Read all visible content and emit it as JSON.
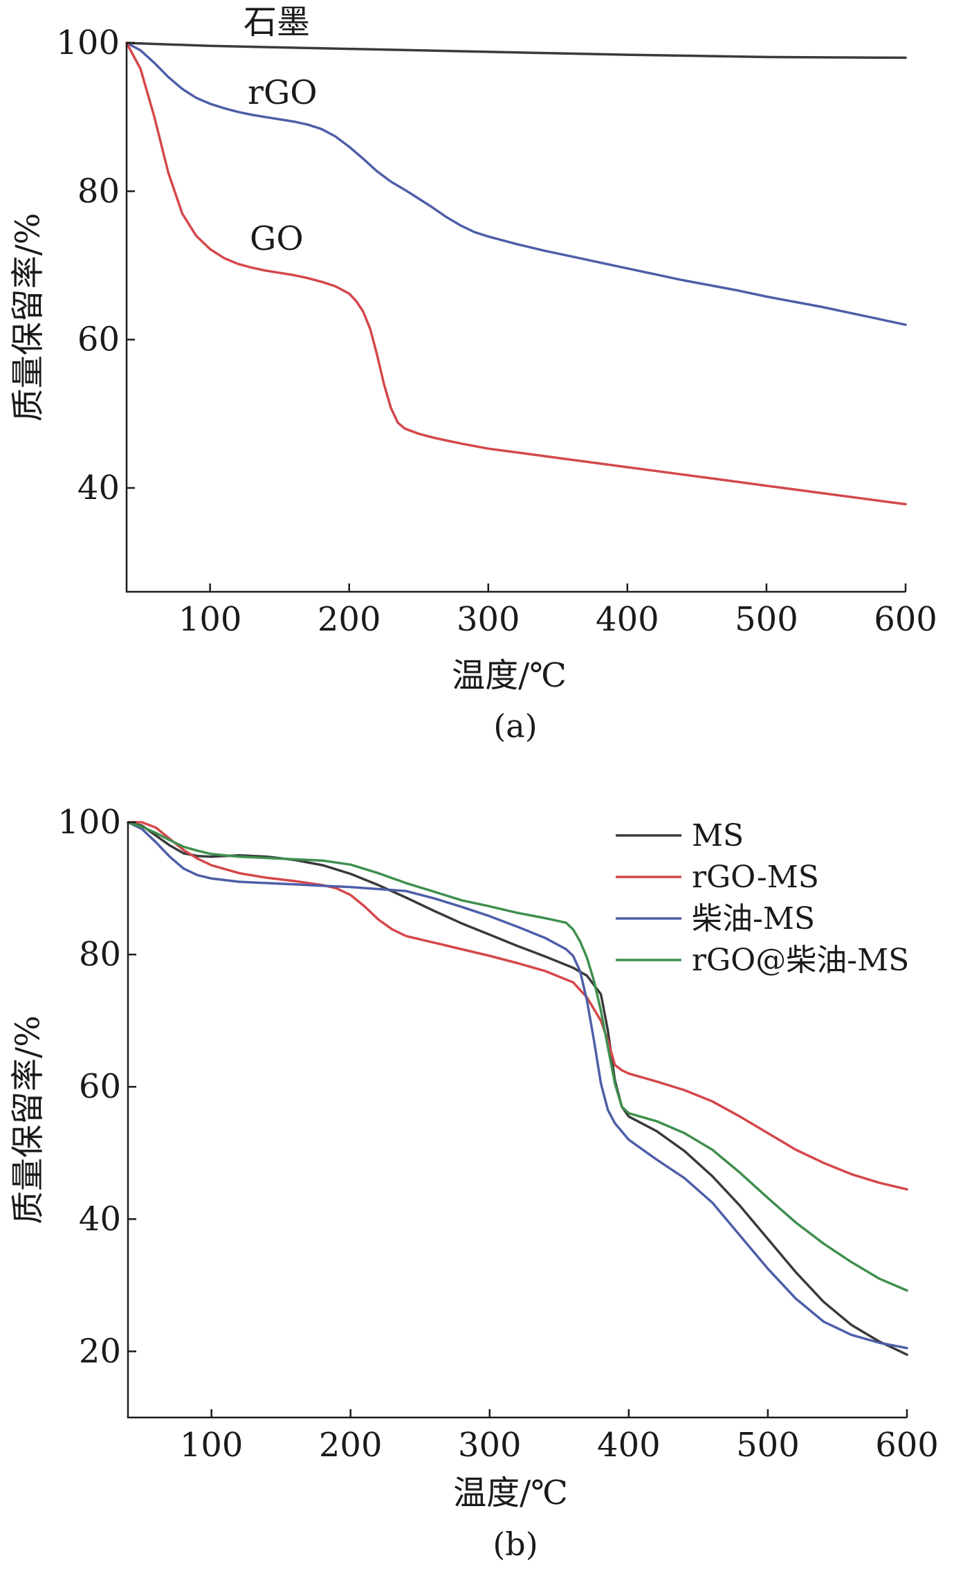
{
  "chart_data": [
    {
      "panel_label": "(a)",
      "type": "line",
      "xlabel": "温度/℃",
      "ylabel": "质量保留率/%",
      "xlim": [
        40,
        600
      ],
      "ylim": [
        26,
        100
      ],
      "xticks": [
        100,
        200,
        300,
        400,
        500,
        600
      ],
      "yticks": [
        40,
        60,
        80,
        100
      ],
      "grid": false,
      "legend": "none",
      "series": [
        {
          "name": "石墨",
          "color": "#3a3a3a",
          "x": [
            40,
            100,
            200,
            300,
            400,
            500,
            600
          ],
          "y": [
            100,
            99.6,
            99.2,
            98.8,
            98.4,
            98.1,
            98.0
          ]
        },
        {
          "name": "rGO",
          "color": "#4e5ea8",
          "x": [
            40,
            50,
            60,
            70,
            80,
            90,
            100,
            110,
            120,
            130,
            140,
            150,
            160,
            170,
            180,
            190,
            200,
            210,
            220,
            230,
            240,
            250,
            260,
            270,
            280,
            290,
            300,
            320,
            340,
            360,
            380,
            400,
            420,
            440,
            460,
            480,
            500,
            520,
            540,
            560,
            580,
            600
          ],
          "y": [
            100,
            99.0,
            97.3,
            95.4,
            93.8,
            92.6,
            91.8,
            91.2,
            90.7,
            90.3,
            90.0,
            89.7,
            89.4,
            89.0,
            88.4,
            87.4,
            86.0,
            84.4,
            82.7,
            81.3,
            80.2,
            79.0,
            77.8,
            76.5,
            75.4,
            74.5,
            73.9,
            72.9,
            72.0,
            71.2,
            70.4,
            69.6,
            68.8,
            68.0,
            67.3,
            66.6,
            65.8,
            65.1,
            64.4,
            63.6,
            62.8,
            62.0
          ]
        },
        {
          "name": "GO",
          "color": "#d4474a",
          "x": [
            40,
            50,
            60,
            70,
            80,
            90,
            100,
            110,
            120,
            130,
            140,
            150,
            160,
            170,
            180,
            190,
            200,
            205,
            210,
            215,
            220,
            225,
            230,
            235,
            240,
            250,
            260,
            280,
            300,
            320,
            340,
            360,
            380,
            400,
            420,
            440,
            460,
            480,
            500,
            520,
            540,
            560,
            580,
            600
          ],
          "y": [
            100,
            96.5,
            90.0,
            82.5,
            77.0,
            74.0,
            72.2,
            71.0,
            70.2,
            69.7,
            69.3,
            69.0,
            68.7,
            68.3,
            67.8,
            67.2,
            66.2,
            65.2,
            63.8,
            61.5,
            58.0,
            54.0,
            50.8,
            48.8,
            48.0,
            47.3,
            46.8,
            46.0,
            45.3,
            44.8,
            44.3,
            43.8,
            43.3,
            42.8,
            42.3,
            41.8,
            41.3,
            40.8,
            40.3,
            39.8,
            39.3,
            38.8,
            38.3,
            37.8
          ]
        }
      ]
    },
    {
      "panel_label": "(b)",
      "type": "line",
      "xlabel": "温度/℃",
      "ylabel": "质量保留率/%",
      "xlim": [
        40,
        600
      ],
      "ylim": [
        10,
        100
      ],
      "xticks": [
        100,
        200,
        300,
        400,
        500,
        600
      ],
      "yticks": [
        20,
        40,
        60,
        80,
        100
      ],
      "grid": false,
      "legend": "top-right",
      "series": [
        {
          "name": "MS",
          "color": "#3a3a3a",
          "x": [
            40,
            50,
            60,
            70,
            80,
            90,
            100,
            120,
            140,
            160,
            180,
            200,
            220,
            240,
            260,
            280,
            300,
            320,
            340,
            360,
            370,
            380,
            385,
            390,
            395,
            400,
            420,
            440,
            460,
            480,
            500,
            520,
            540,
            560,
            580,
            600
          ],
          "y": [
            100,
            99.5,
            98.0,
            96.5,
            95.3,
            94.9,
            94.8,
            95.0,
            94.8,
            94.3,
            93.5,
            92.2,
            90.5,
            88.6,
            86.6,
            84.7,
            83.0,
            81.3,
            79.7,
            78.0,
            76.8,
            74.0,
            68.5,
            61.0,
            57.0,
            55.5,
            53.3,
            50.3,
            46.5,
            42.0,
            37.0,
            32.0,
            27.5,
            24.0,
            21.5,
            19.5
          ]
        },
        {
          "name": "rGO-MS",
          "color": "#d4474a",
          "x": [
            40,
            50,
            60,
            70,
            80,
            90,
            100,
            120,
            140,
            160,
            180,
            190,
            200,
            210,
            220,
            230,
            240,
            260,
            280,
            300,
            320,
            340,
            360,
            370,
            380,
            385,
            390,
            395,
            400,
            420,
            440,
            460,
            480,
            500,
            520,
            540,
            560,
            580,
            600
          ],
          "y": [
            100,
            100,
            99.2,
            97.5,
            95.8,
            94.5,
            93.5,
            92.3,
            91.6,
            91.1,
            90.5,
            90.0,
            89.0,
            87.3,
            85.3,
            83.8,
            82.8,
            81.8,
            80.8,
            79.8,
            78.7,
            77.5,
            75.8,
            73.5,
            70.0,
            67.0,
            63.3,
            62.5,
            62.0,
            60.8,
            59.5,
            57.8,
            55.5,
            53.0,
            50.5,
            48.5,
            46.8,
            45.5,
            44.5
          ]
        },
        {
          "name": "柴油-MS",
          "color": "#4e5ea8",
          "x": [
            40,
            50,
            60,
            70,
            80,
            90,
            100,
            120,
            140,
            160,
            180,
            200,
            220,
            240,
            260,
            280,
            300,
            320,
            340,
            355,
            360,
            365,
            370,
            375,
            380,
            385,
            390,
            400,
            420,
            440,
            460,
            480,
            500,
            520,
            540,
            560,
            580,
            600
          ],
          "y": [
            100,
            99.0,
            97.0,
            94.8,
            93.0,
            92.0,
            91.5,
            91.0,
            90.8,
            90.6,
            90.4,
            90.2,
            89.9,
            89.6,
            88.5,
            87.2,
            85.8,
            84.2,
            82.5,
            80.8,
            79.8,
            77.5,
            73.0,
            67.0,
            60.5,
            56.5,
            54.5,
            52.0,
            49.0,
            46.2,
            42.5,
            37.5,
            32.5,
            28.0,
            24.5,
            22.5,
            21.3,
            20.5
          ]
        },
        {
          "name": "rGO@柴油-MS",
          "color": "#3f8f4e",
          "x": [
            40,
            50,
            60,
            70,
            80,
            90,
            100,
            120,
            140,
            160,
            180,
            200,
            220,
            240,
            260,
            280,
            300,
            320,
            340,
            355,
            360,
            365,
            370,
            375,
            380,
            385,
            390,
            395,
            400,
            420,
            440,
            460,
            480,
            500,
            520,
            540,
            560,
            580,
            600
          ],
          "y": [
            100,
            99.3,
            98.4,
            97.3,
            96.3,
            95.7,
            95.2,
            94.8,
            94.6,
            94.4,
            94.2,
            93.6,
            92.3,
            90.8,
            89.5,
            88.2,
            87.3,
            86.3,
            85.5,
            84.8,
            83.8,
            82.0,
            79.5,
            76.0,
            71.5,
            66.0,
            60.5,
            57.0,
            56.0,
            54.8,
            53.0,
            50.5,
            47.0,
            43.2,
            39.5,
            36.3,
            33.5,
            31.0,
            29.2
          ]
        }
      ]
    }
  ]
}
